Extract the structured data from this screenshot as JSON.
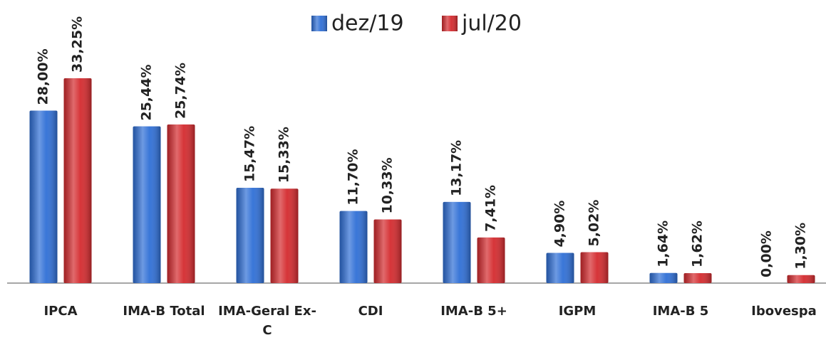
{
  "chart_data": {
    "type": "bar",
    "categories": [
      "IPCA",
      "IMA-B Total",
      "IMA-Geral Ex-C",
      "CDI",
      "IMA-B 5+",
      "IGPM",
      "IMA-B 5",
      "Ibovespa"
    ],
    "series": [
      {
        "name": "dez/19",
        "color": "#2f6fd6",
        "values": [
          28.0,
          25.44,
          15.47,
          11.7,
          13.17,
          4.9,
          1.64,
          0.0
        ],
        "value_labels": [
          "28,00%",
          "25,44%",
          "15,47%",
          "11,70%",
          "13,17%",
          "4,90%",
          "1,64%",
          "0,00%"
        ]
      },
      {
        "name": "jul/20",
        "color": "#d42a2e",
        "values": [
          33.25,
          25.74,
          15.33,
          10.33,
          7.41,
          5.02,
          1.62,
          1.3
        ],
        "value_labels": [
          "33,25%",
          "25,74%",
          "15,33%",
          "10,33%",
          "7,41%",
          "5,02%",
          "1,62%",
          "1,30%"
        ]
      }
    ],
    "legend": "top"
  }
}
